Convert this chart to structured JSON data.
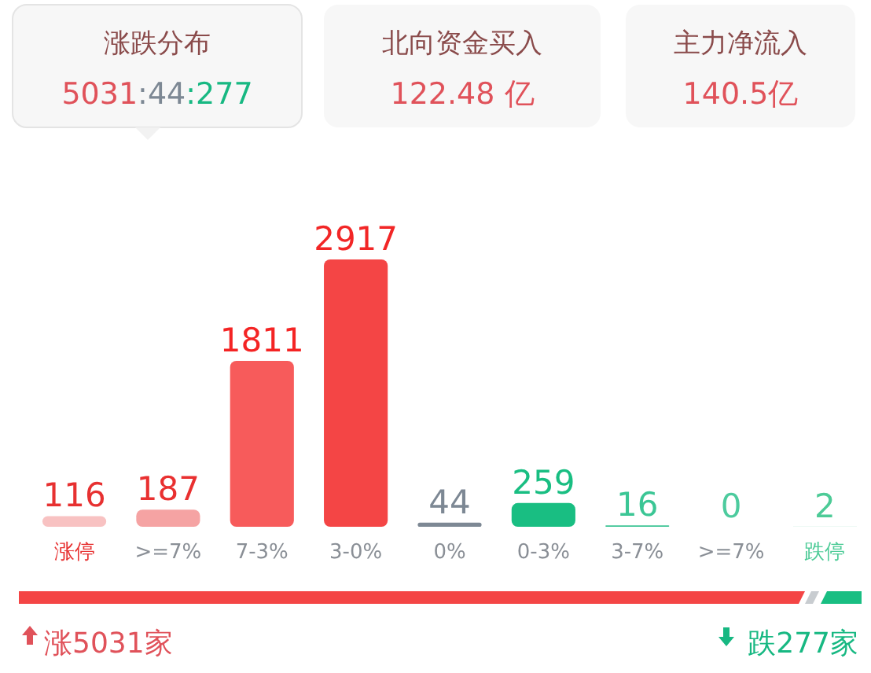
{
  "chart_data": {
    "type": "bar",
    "categories": [
      "涨停",
      ">=7%",
      "7-3%",
      "3-0%",
      "0%",
      "0-3%",
      "3-7%",
      ">=7%",
      "跌停"
    ],
    "values": [
      116,
      187,
      1811,
      2917,
      44,
      259,
      16,
      0,
      2
    ],
    "colors": [
      "#f8c2c2",
      "#f5a3a3",
      "#f75b5b",
      "#f44545",
      "#7d8894",
      "#19be82",
      "#3dc494",
      "#93d8bf",
      "#b7e5d2"
    ],
    "data_labels": true,
    "annotations": [
      "涨跌分布",
      "5031:44:277",
      "北向资金买入",
      "122.48 亿",
      "主力净流入",
      "140.5亿",
      "涨5031家",
      "跌277家"
    ]
  }
}
